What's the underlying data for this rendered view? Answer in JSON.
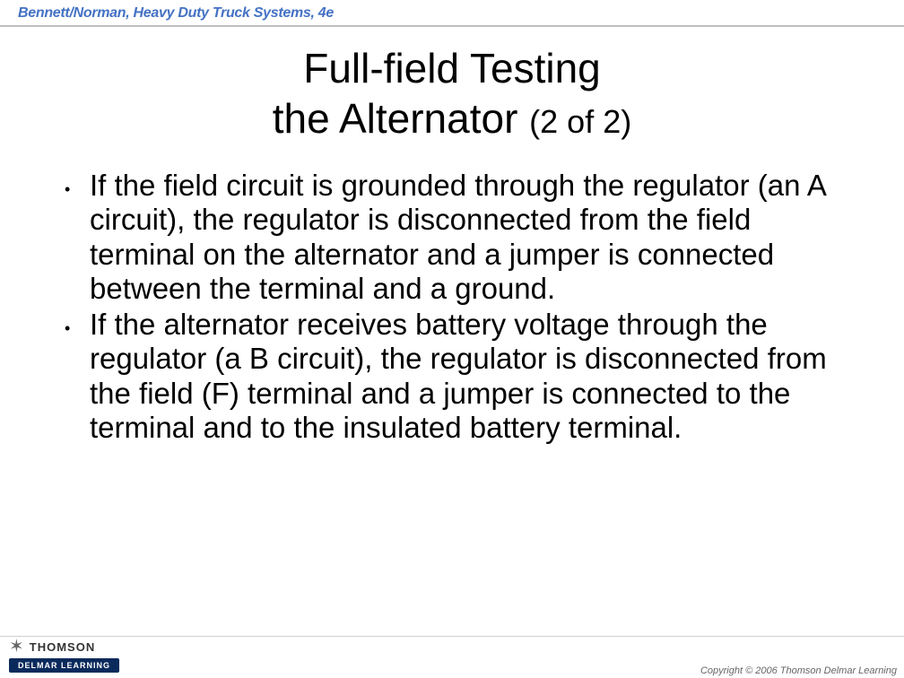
{
  "header": {
    "citation": "Bennett/Norman, Heavy Duty Truck Systems, 4e"
  },
  "title": {
    "line1": "Full-field Testing",
    "line2_main": "the Alternator ",
    "line2_part": "(2 of 2)"
  },
  "bullets": [
    "If the field circuit is grounded through the regulator (an A circuit), the regulator is disconnected from the field terminal on the alternator and a jumper is connected between the terminal and a ground.",
    "If the alternator receives battery voltage through the regulator (a B circuit), the regulator is disconnected from the field (F) terminal and a jumper is connected to the terminal and to the insulated battery terminal."
  ],
  "footer": {
    "brand_top": "THOMSON",
    "brand_bottom": "DELMAR LEARNING",
    "copyright": "Copyright © 2006 Thomson Delmar Learning"
  },
  "colors": {
    "citation": "#4472c4",
    "text": "#000000",
    "delmar_bg": "#0a2a5c",
    "background": "#ffffff"
  },
  "typography": {
    "title_fontsize": 46,
    "title_part_fontsize": 36,
    "body_fontsize": 33,
    "citation_fontsize": 16
  }
}
